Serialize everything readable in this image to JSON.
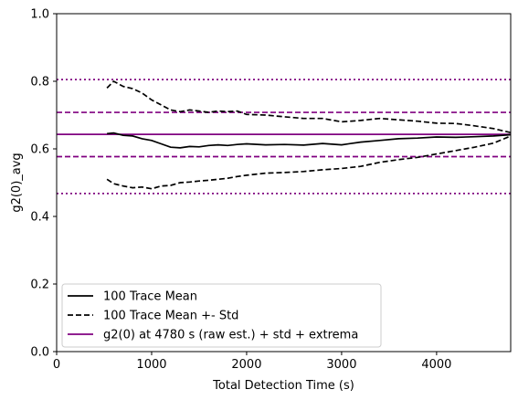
{
  "chart_data": {
    "type": "line",
    "xlabel": "Total Detection Time (s)",
    "ylabel": "g2(0)_avg",
    "xlim": [
      0,
      4780
    ],
    "ylim": [
      0.0,
      1.0
    ],
    "x_ticks": [
      {
        "value": 0,
        "label": "0"
      },
      {
        "value": 1000,
        "label": "1000"
      },
      {
        "value": 2000,
        "label": "2000"
      },
      {
        "value": 3000,
        "label": "3000"
      },
      {
        "value": 4000,
        "label": "4000"
      }
    ],
    "y_ticks": [
      {
        "value": 0.0,
        "label": "0.0"
      },
      {
        "value": 0.2,
        "label": "0.2"
      },
      {
        "value": 0.4,
        "label": "0.4"
      },
      {
        "value": 0.6,
        "label": "0.6"
      },
      {
        "value": 0.8,
        "label": "0.8"
      },
      {
        "value": 1.0,
        "label": "1.0"
      }
    ],
    "legend_position": "lower-left",
    "series": [
      {
        "name": "100 Trace Mean",
        "color": "#000000",
        "style": "solid",
        "x": [
          530,
          600,
          700,
          800,
          900,
          1000,
          1100,
          1200,
          1300,
          1400,
          1500,
          1600,
          1700,
          1800,
          1900,
          2000,
          2200,
          2400,
          2600,
          2800,
          3000,
          3200,
          3400,
          3600,
          3800,
          4000,
          4200,
          4400,
          4600,
          4780
        ],
        "y": [
          0.645,
          0.647,
          0.64,
          0.638,
          0.63,
          0.625,
          0.615,
          0.605,
          0.603,
          0.607,
          0.606,
          0.61,
          0.612,
          0.61,
          0.613,
          0.615,
          0.612,
          0.613,
          0.611,
          0.616,
          0.612,
          0.62,
          0.625,
          0.63,
          0.632,
          0.635,
          0.634,
          0.636,
          0.638,
          0.642
        ]
      },
      {
        "name": "100 Trace Mean +- Std",
        "color": "#000000",
        "style": "dashed",
        "x": [
          530,
          600,
          700,
          800,
          900,
          1000,
          1100,
          1200,
          1300,
          1400,
          1500,
          1600,
          1700,
          1800,
          1900,
          2000,
          2200,
          2400,
          2600,
          2800,
          3000,
          3200,
          3400,
          3600,
          3800,
          4000,
          4200,
          4400,
          4600,
          4780
        ],
        "y": [
          0.78,
          0.8,
          0.785,
          0.778,
          0.765,
          0.745,
          0.73,
          0.715,
          0.71,
          0.715,
          0.712,
          0.708,
          0.712,
          0.71,
          0.712,
          0.702,
          0.7,
          0.695,
          0.69,
          0.69,
          0.68,
          0.684,
          0.69,
          0.686,
          0.682,
          0.676,
          0.675,
          0.668,
          0.66,
          0.648
        ]
      },
      {
        "name": "100 Trace Mean +- Std (lower)",
        "color": "#000000",
        "style": "dashed",
        "x": [
          530,
          600,
          700,
          800,
          900,
          1000,
          1100,
          1200,
          1300,
          1400,
          1500,
          1600,
          1700,
          1800,
          1900,
          2000,
          2200,
          2400,
          2600,
          2800,
          3000,
          3200,
          3400,
          3600,
          3800,
          4000,
          4200,
          4400,
          4600,
          4780
        ],
        "y": [
          0.51,
          0.497,
          0.49,
          0.485,
          0.487,
          0.482,
          0.49,
          0.492,
          0.5,
          0.502,
          0.505,
          0.507,
          0.51,
          0.513,
          0.518,
          0.522,
          0.528,
          0.53,
          0.533,
          0.538,
          0.542,
          0.548,
          0.56,
          0.568,
          0.575,
          0.585,
          0.595,
          0.605,
          0.617,
          0.638
        ]
      },
      {
        "name": "g2(0) at 4780 s (raw est.) + std + extrema",
        "color": "#800080",
        "style": "solid",
        "horizontal_lines": [
          {
            "y": 0.643,
            "style": "solid"
          },
          {
            "y": 0.708,
            "style": "dashed"
          },
          {
            "y": 0.577,
            "style": "dashed"
          },
          {
            "y": 0.805,
            "style": "dotted"
          },
          {
            "y": 0.468,
            "style": "dotted"
          }
        ]
      }
    ],
    "legend": [
      {
        "label": "100 Trace Mean",
        "color": "#000000",
        "style": "solid"
      },
      {
        "label": "100 Trace Mean +- Std",
        "color": "#000000",
        "style": "dashed"
      },
      {
        "label": "g2(0) at 4780 s (raw est.) + std + extrema",
        "color": "#800080",
        "style": "solid"
      }
    ]
  }
}
